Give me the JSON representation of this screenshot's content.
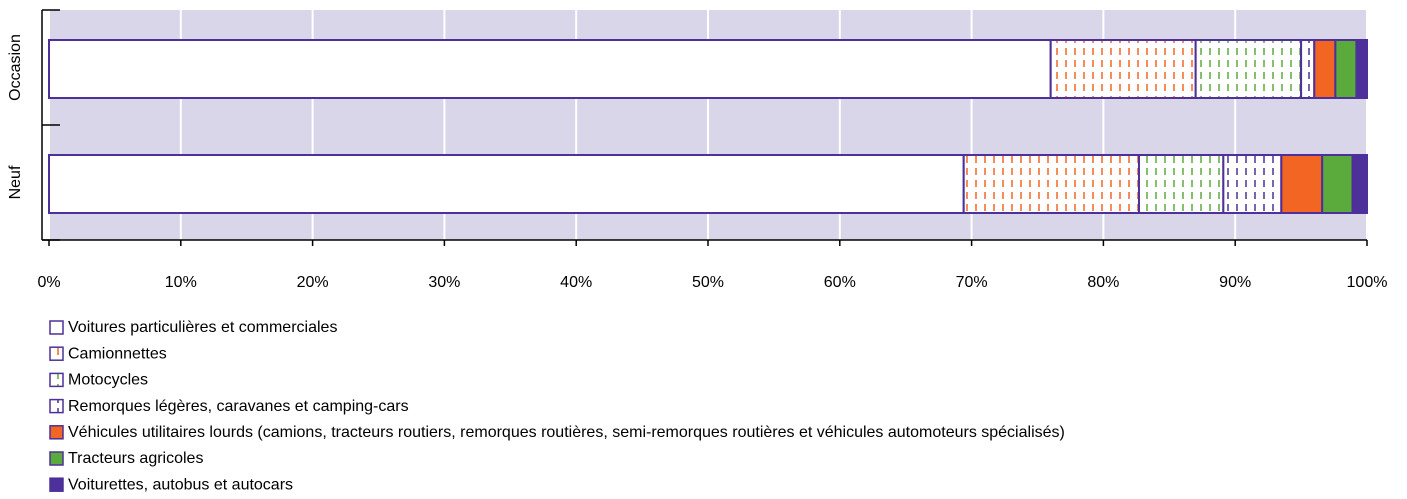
{
  "chart_data": {
    "type": "stacked-bar-horizontal",
    "categories": [
      "Occasion",
      "Neuf"
    ],
    "series": [
      {
        "name": "Voitures particulières et commerciales",
        "color": "#ffffff",
        "style": "empty",
        "values": [
          76,
          69.4
        ]
      },
      {
        "name": "Camionnettes",
        "color": "#f26522",
        "style": "dashed",
        "values": [
          11,
          13.3
        ]
      },
      {
        "name": "Motocycles",
        "color": "#5aab3c",
        "style": "dashed",
        "values": [
          8,
          6.4
        ]
      },
      {
        "name": "Remorques légères, caravanes et camping-cars",
        "color": "#4d3099",
        "style": "dashed",
        "values": [
          1,
          4.4
        ]
      },
      {
        "name": "Véhicules utilitaires lourds (camions, tracteurs routiers, remorques routières, semi-remorques routières et véhicules automoteurs spécialisés)",
        "color": "#f26522",
        "style": "solid",
        "values": [
          1.6,
          3.1
        ]
      },
      {
        "name": "Tracteurs agricoles",
        "color": "#5aab3c",
        "style": "solid",
        "values": [
          1.6,
          2.3
        ]
      },
      {
        "name": "Voiturettes, autobus et autocars",
        "color": "#4d3099",
        "style": "solid",
        "values": [
          0.8,
          1.1
        ]
      }
    ],
    "xlim": [
      0,
      100
    ],
    "xticks": [
      {
        "value": 0,
        "label": "0%"
      },
      {
        "value": 10,
        "label": "10%"
      },
      {
        "value": 20,
        "label": "20%"
      },
      {
        "value": 30,
        "label": "30%"
      },
      {
        "value": 40,
        "label": "40%"
      },
      {
        "value": 50,
        "label": "50%"
      },
      {
        "value": 60,
        "label": "60%"
      },
      {
        "value": 70,
        "label": "70%"
      },
      {
        "value": 80,
        "label": "80%"
      },
      {
        "value": 90,
        "label": "90%"
      },
      {
        "value": 100,
        "label": "100%"
      }
    ],
    "grid": true,
    "plot_background": "#d9d6ea",
    "border_color": "#4d3099"
  }
}
